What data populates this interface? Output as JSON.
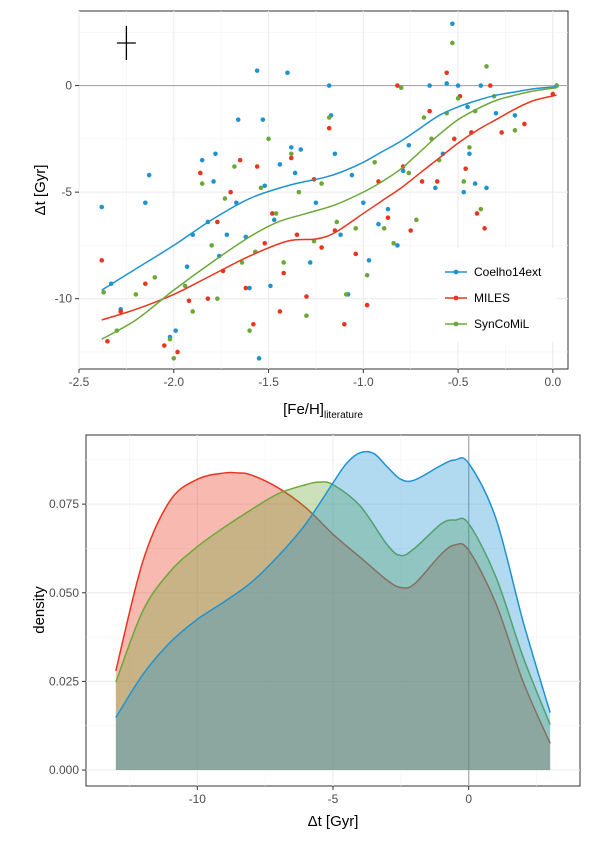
{
  "colors": {
    "Coelho14ext": "#1f93d0",
    "MILES": "#e8361e",
    "SynCoMiL": "#6ca838"
  },
  "chart_data": [
    {
      "type": "scatter",
      "xlabel": "[Fe/H]",
      "xlabel_sub": "literature",
      "ylabel": "Δt [Gyr]",
      "xlim": [
        -2.5,
        0.08
      ],
      "ylim": [
        -13.3,
        3.5
      ],
      "x_ticks": [
        -2.5,
        -2.0,
        -1.5,
        -1.0,
        -0.5,
        0.0
      ],
      "x_tick_labels": [
        "-2.5",
        "-2.0",
        "-1.5",
        "-1.0",
        "-0.5",
        "0.0"
      ],
      "y_ticks": [
        -10,
        -5,
        0
      ],
      "y_tick_labels": [
        "-10",
        "-5",
        "0"
      ],
      "hline": 0,
      "error_cross": {
        "x": -2.25,
        "y": 2.0,
        "dx": 0.05,
        "dy": 0.8
      },
      "legend": "right",
      "series": [
        {
          "name": "Coelho14ext",
          "points": [
            [
              -2.38,
              -5.7
            ],
            [
              -2.33,
              -9.3
            ],
            [
              -2.28,
              -10.5
            ],
            [
              -2.15,
              -5.5
            ],
            [
              -2.13,
              -4.2
            ],
            [
              -2.02,
              -11.8
            ],
            [
              -1.99,
              -11.5
            ],
            [
              -1.93,
              -8.5
            ],
            [
              -1.9,
              -7
            ],
            [
              -1.85,
              -3.5
            ],
            [
              -1.82,
              -6.4
            ],
            [
              -1.79,
              -4.5
            ],
            [
              -1.78,
              -3.2
            ],
            [
              -1.76,
              -8
            ],
            [
              -1.72,
              -7
            ],
            [
              -1.67,
              -5.5
            ],
            [
              -1.66,
              -1.6
            ],
            [
              -1.62,
              -7.1
            ],
            [
              -1.6,
              -9.5
            ],
            [
              -1.56,
              0.7
            ],
            [
              -1.55,
              -12.8
            ],
            [
              -1.53,
              -1.6
            ],
            [
              -1.52,
              -4.7
            ],
            [
              -1.49,
              -9.4
            ],
            [
              -1.47,
              -6.3
            ],
            [
              -1.44,
              -3.7
            ],
            [
              -1.4,
              0.6
            ],
            [
              -1.38,
              -2.9
            ],
            [
              -1.36,
              -4.1
            ],
            [
              -1.33,
              -3
            ],
            [
              -1.28,
              -8.3
            ],
            [
              -1.25,
              -5.5
            ],
            [
              -1.18,
              0
            ],
            [
              -1.17,
              -1.4
            ],
            [
              -1.15,
              -3.2
            ],
            [
              -1.12,
              -7
            ],
            [
              -1.08,
              -9.8
            ],
            [
              -1.06,
              -4.2
            ],
            [
              -1.0,
              -5.5
            ],
            [
              -0.97,
              -8.2
            ],
            [
              -0.92,
              -6.5
            ],
            [
              -0.87,
              -5.8
            ],
            [
              -0.82,
              -7.5
            ],
            [
              -0.79,
              -4
            ],
            [
              -0.76,
              -2.8
            ],
            [
              -0.65,
              0
            ],
            [
              -0.62,
              -4.8
            ],
            [
              -0.58,
              -3.2
            ],
            [
              -0.56,
              0.1
            ],
            [
              -0.53,
              2.9
            ],
            [
              -0.5,
              0
            ],
            [
              -0.47,
              -5
            ],
            [
              -0.45,
              -1
            ],
            [
              -0.44,
              -3.2
            ],
            [
              -0.41,
              -4.6
            ],
            [
              -0.38,
              0
            ],
            [
              -0.35,
              -4.8
            ],
            [
              -0.3,
              -1.3
            ],
            [
              -0.2,
              -1.4
            ],
            [
              0.02,
              0
            ]
          ]
        },
        {
          "name": "MILES",
          "points": [
            [
              -2.38,
              -8.2
            ],
            [
              -2.35,
              -12
            ],
            [
              -2.28,
              -10.6
            ],
            [
              -2.15,
              -9.3
            ],
            [
              -2.05,
              -12.2
            ],
            [
              -1.98,
              -12.5
            ],
            [
              -1.92,
              -10.1
            ],
            [
              -1.86,
              -4.1
            ],
            [
              -1.82,
              -10
            ],
            [
              -1.77,
              -6.4
            ],
            [
              -1.74,
              -8.7
            ],
            [
              -1.7,
              -5
            ],
            [
              -1.65,
              -3.5
            ],
            [
              -1.62,
              -9.5
            ],
            [
              -1.58,
              -11.2
            ],
            [
              -1.56,
              -3.8
            ],
            [
              -1.52,
              -7.4
            ],
            [
              -1.48,
              -6
            ],
            [
              -1.44,
              -10.6
            ],
            [
              -1.42,
              -8.8
            ],
            [
              -1.38,
              -3.4
            ],
            [
              -1.35,
              -7
            ],
            [
              -1.3,
              -9.9
            ],
            [
              -1.26,
              -4.4
            ],
            [
              -1.22,
              -7.6
            ],
            [
              -1.18,
              -2
            ],
            [
              -1.15,
              -6.8
            ],
            [
              -1.1,
              -11.2
            ],
            [
              -1.04,
              -7.9
            ],
            [
              -0.98,
              -10.3
            ],
            [
              -0.92,
              -4.5
            ],
            [
              -0.87,
              -6.2
            ],
            [
              -0.82,
              0
            ],
            [
              -0.79,
              -3.8
            ],
            [
              -0.75,
              -6.8
            ],
            [
              -0.69,
              -4.5
            ],
            [
              -0.65,
              -1.2
            ],
            [
              -0.61,
              -4.5
            ],
            [
              -0.56,
              0.6
            ],
            [
              -0.52,
              -2.5
            ],
            [
              -0.49,
              -0.5
            ],
            [
              -0.46,
              -3.9
            ],
            [
              -0.43,
              -2.2
            ],
            [
              -0.4,
              -6
            ],
            [
              -0.36,
              -6.7
            ],
            [
              -0.33,
              0
            ],
            [
              -0.27,
              -2.2
            ],
            [
              -0.15,
              -1.8
            ],
            [
              0.0,
              -0.4
            ]
          ]
        },
        {
          "name": "SynCoMiL",
          "points": [
            [
              -2.37,
              -9.7
            ],
            [
              -2.3,
              -11.5
            ],
            [
              -2.2,
              -9.8
            ],
            [
              -2.1,
              -9
            ],
            [
              -2.02,
              -11.9
            ],
            [
              -2.0,
              -12.8
            ],
            [
              -1.94,
              -9.4
            ],
            [
              -1.9,
              -10.6
            ],
            [
              -1.85,
              -4.6
            ],
            [
              -1.8,
              -7.5
            ],
            [
              -1.77,
              -10
            ],
            [
              -1.73,
              -5.3
            ],
            [
              -1.68,
              -3.8
            ],
            [
              -1.64,
              -8.3
            ],
            [
              -1.6,
              -11.5
            ],
            [
              -1.57,
              -7.8
            ],
            [
              -1.54,
              -4.8
            ],
            [
              -1.5,
              -2.5
            ],
            [
              -1.46,
              -6
            ],
            [
              -1.42,
              -8.3
            ],
            [
              -1.38,
              -3.2
            ],
            [
              -1.34,
              -5
            ],
            [
              -1.3,
              -10.8
            ],
            [
              -1.26,
              -7.3
            ],
            [
              -1.22,
              -4.6
            ],
            [
              -1.18,
              -1.5
            ],
            [
              -1.14,
              -6.4
            ],
            [
              -1.09,
              -9.8
            ],
            [
              -1.04,
              -6.7
            ],
            [
              -0.98,
              -8.9
            ],
            [
              -0.94,
              -3.6
            ],
            [
              -0.89,
              -6.7
            ],
            [
              -0.84,
              -7.4
            ],
            [
              -0.8,
              -0.1
            ],
            [
              -0.76,
              -4.1
            ],
            [
              -0.72,
              -6.3
            ],
            [
              -0.68,
              -1.5
            ],
            [
              -0.64,
              -2.5
            ],
            [
              -0.6,
              -3.5
            ],
            [
              -0.56,
              -1.3
            ],
            [
              -0.53,
              2
            ],
            [
              -0.5,
              -0.6
            ],
            [
              -0.47,
              -4.5
            ],
            [
              -0.44,
              -2.9
            ],
            [
              -0.41,
              -1.2
            ],
            [
              -0.38,
              -5.8
            ],
            [
              -0.35,
              0.9
            ],
            [
              -0.31,
              -0.5
            ],
            [
              -0.2,
              -2.1
            ],
            [
              0.02,
              0
            ]
          ]
        }
      ],
      "smooth": [
        {
          "name": "Coelho14ext",
          "x": [
            -2.38,
            -2.2,
            -2.0,
            -1.8,
            -1.6,
            -1.4,
            -1.2,
            -1.1,
            -1.0,
            -0.9,
            -0.8,
            -0.7,
            -0.6,
            -0.5,
            -0.4,
            -0.3,
            -0.2,
            -0.1,
            0.02
          ],
          "y": [
            -9.6,
            -8.6,
            -7.5,
            -6.3,
            -5.3,
            -4.7,
            -4.3,
            -4.0,
            -3.6,
            -3.1,
            -2.6,
            -2.0,
            -1.4,
            -1.0,
            -0.7,
            -0.45,
            -0.3,
            -0.15,
            -0.05
          ]
        },
        {
          "name": "MILES",
          "x": [
            -2.38,
            -2.2,
            -2.0,
            -1.8,
            -1.6,
            -1.4,
            -1.25,
            -1.15,
            -1.0,
            -0.9,
            -0.8,
            -0.7,
            -0.6,
            -0.5,
            -0.4,
            -0.3,
            -0.2,
            -0.1,
            0.02
          ],
          "y": [
            -11.0,
            -10.5,
            -9.8,
            -8.9,
            -8.0,
            -7.3,
            -7.2,
            -6.9,
            -6.0,
            -5.4,
            -4.8,
            -4.1,
            -3.4,
            -2.7,
            -2.1,
            -1.6,
            -1.1,
            -0.7,
            -0.45
          ]
        },
        {
          "name": "SynCoMiL",
          "x": [
            -2.38,
            -2.2,
            -2.0,
            -1.8,
            -1.6,
            -1.45,
            -1.3,
            -1.15,
            -1.0,
            -0.9,
            -0.8,
            -0.7,
            -0.6,
            -0.5,
            -0.4,
            -0.3,
            -0.2,
            -0.1,
            0.02
          ],
          "y": [
            -11.9,
            -11.0,
            -9.6,
            -8.3,
            -7.1,
            -6.4,
            -6.0,
            -5.6,
            -5.0,
            -4.5,
            -3.9,
            -3.1,
            -2.3,
            -1.6,
            -1.1,
            -0.7,
            -0.45,
            -0.25,
            -0.1
          ]
        }
      ]
    },
    {
      "type": "area",
      "xlabel": "Δt [Gyr]",
      "ylabel": "density",
      "xlim": [
        -14.1,
        4.1
      ],
      "ylim": [
        -0.0045,
        0.0945
      ],
      "x_ticks": [
        -10,
        -5,
        0
      ],
      "x_tick_labels": [
        "-10",
        "-5",
        "0"
      ],
      "y_ticks": [
        0,
        0.025,
        0.05,
        0.075
      ],
      "y_tick_labels": [
        "0.000",
        "0.025",
        "0.050",
        "0.075"
      ],
      "vline": 0,
      "series": [
        {
          "name": "MILES",
          "x": [
            -13,
            -12,
            -11,
            -10,
            -9,
            -8.5,
            -8,
            -7,
            -6,
            -5,
            -4,
            -3,
            -2.5,
            -2,
            -1,
            -0.5,
            0,
            1,
            2,
            3
          ],
          "y": [
            0.028,
            0.059,
            0.076,
            0.082,
            0.0838,
            0.0838,
            0.0832,
            0.0795,
            0.074,
            0.0665,
            0.06,
            0.0535,
            0.0515,
            0.0525,
            0.061,
            0.0635,
            0.062,
            0.047,
            0.025,
            0.0075
          ]
        },
        {
          "name": "SynCoMiL",
          "x": [
            -13,
            -12,
            -11,
            -10,
            -9,
            -8,
            -7,
            -6,
            -5.5,
            -5,
            -4,
            -3,
            -2.5,
            -2,
            -1,
            -0.5,
            0,
            1,
            2,
            3
          ],
          "y": [
            0.0248,
            0.045,
            0.056,
            0.063,
            0.0685,
            0.0735,
            0.078,
            0.0805,
            0.0812,
            0.0805,
            0.0745,
            0.0635,
            0.0605,
            0.0625,
            0.0695,
            0.0705,
            0.0695,
            0.0545,
            0.032,
            0.0128
          ]
        },
        {
          "name": "Coelho14ext",
          "x": [
            -13,
            -12,
            -11,
            -10,
            -9,
            -8,
            -7,
            -6,
            -5,
            -4.5,
            -4,
            -3.5,
            -3,
            -2.5,
            -2,
            -1,
            -0.5,
            0,
            1,
            2,
            3
          ],
          "y": [
            0.0148,
            0.027,
            0.036,
            0.0425,
            0.0475,
            0.053,
            0.0605,
            0.0695,
            0.081,
            0.0865,
            0.0895,
            0.0893,
            0.0855,
            0.082,
            0.0818,
            0.086,
            0.0875,
            0.0865,
            0.071,
            0.042,
            0.0162
          ]
        }
      ]
    }
  ]
}
